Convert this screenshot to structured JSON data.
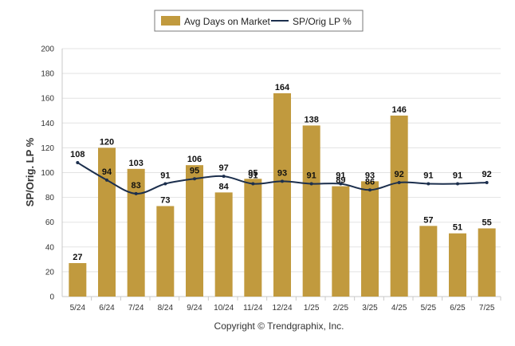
{
  "chart_data": {
    "type": "bar",
    "categories": [
      "5/24",
      "6/24",
      "7/24",
      "8/24",
      "9/24",
      "10/24",
      "11/24",
      "12/24",
      "1/25",
      "2/25",
      "3/25",
      "4/25",
      "5/25",
      "6/25",
      "7/25"
    ],
    "series": [
      {
        "name": "Avg Days on Market",
        "kind": "bar",
        "color": "#c19a3e",
        "values": [
          27,
          120,
          103,
          73,
          106,
          84,
          95,
          164,
          138,
          89,
          93,
          146,
          57,
          51,
          55
        ]
      },
      {
        "name": "SP/Orig LP %",
        "kind": "line",
        "color": "#1c2f4d",
        "values": [
          108,
          94,
          83,
          91,
          95,
          97,
          91,
          93,
          91,
          91,
          86,
          92,
          91,
          91,
          92
        ]
      }
    ],
    "ylabel": "SP/Orig. LP %",
    "xlabel": "",
    "ylim": [
      0,
      200
    ],
    "yticks": [
      0,
      20,
      40,
      60,
      80,
      100,
      120,
      140,
      160,
      180,
      200
    ],
    "grid": true,
    "legend_position": "top-center"
  },
  "footer": {
    "copyright": "Copyright © Trendgraphix, Inc."
  }
}
